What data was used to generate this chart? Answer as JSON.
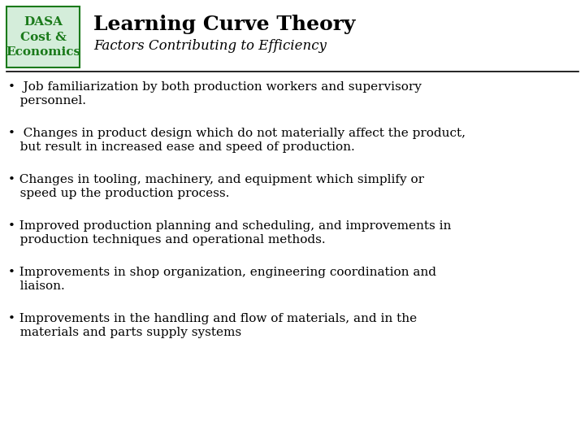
{
  "title": "Learning Curve Theory",
  "subtitle": "Factors Contributing to Efficiency",
  "logo_lines": [
    "DASA",
    "Cost &",
    "Economics"
  ],
  "logo_color": "#1a7a1a",
  "logo_bg_color": "#d4edda",
  "bullet_points": [
    "•  Job familiarization by both production workers and supervisory\n   personnel.",
    "•  Changes in product design which do not materially affect the product,\n   but result in increased ease and speed of production.",
    "• Changes in tooling, machinery, and equipment which simplify or\n   speed up the production process.",
    "• Improved production planning and scheduling, and improvements in\n   production techniques and operational methods.",
    "• Improvements in shop organization, engineering coordination and\n   liaison.",
    "• Improvements in the handling and flow of materials, and in the\n   materials and parts supply systems"
  ],
  "bg_color": "#ffffff",
  "text_color": "#000000",
  "title_fontsize": 18,
  "subtitle_fontsize": 12,
  "body_fontsize": 11,
  "logo_fontsize": 11,
  "fig_width": 7.2,
  "fig_height": 5.4,
  "dpi": 100
}
